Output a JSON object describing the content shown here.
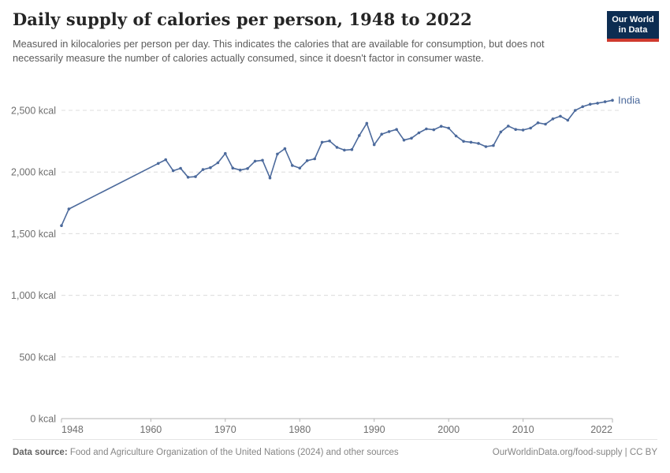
{
  "header": {
    "title": "Daily supply of calories per person, 1948 to 2022",
    "subtitle": "Measured in kilocalories per person per day. This indicates the calories that are available for consumption, but does not necessarily measure the number of calories actually consumed, since it doesn't factor in consumer waste.",
    "logo": {
      "line1": "Our World",
      "line2": "in Data",
      "bg_color": "#0d2d52",
      "stripe_color": "#cf3a2e",
      "text_color": "#ffffff"
    }
  },
  "chart_data": {
    "type": "line",
    "title": "Daily supply of calories per person, 1948 to 2022",
    "xlabel": "",
    "ylabel": "",
    "xlim": [
      1948,
      2022
    ],
    "ylim": [
      0,
      2500
    ],
    "grid": "horizontal-dashed",
    "legend_position": "end-of-line-label",
    "y_ticks": [
      {
        "value": 0,
        "label": "0 kcal"
      },
      {
        "value": 500,
        "label": "500 kcal"
      },
      {
        "value": 1000,
        "label": "1,000 kcal"
      },
      {
        "value": 1500,
        "label": "1,500 kcal"
      },
      {
        "value": 2000,
        "label": "2,000 kcal"
      },
      {
        "value": 2500,
        "label": "2,500 kcal"
      }
    ],
    "x_ticks": [
      {
        "value": 1948,
        "label": "1948"
      },
      {
        "value": 1960,
        "label": "1960"
      },
      {
        "value": 1970,
        "label": "1970"
      },
      {
        "value": 1980,
        "label": "1980"
      },
      {
        "value": 1990,
        "label": "1990"
      },
      {
        "value": 2000,
        "label": "2000"
      },
      {
        "value": 2010,
        "label": "2010"
      },
      {
        "value": 2022,
        "label": "2022"
      }
    ],
    "series": [
      {
        "name": "India",
        "color": "#4c6a9c",
        "unit": "kcal",
        "points": [
          [
            1948,
            1565
          ],
          [
            1949,
            1700
          ],
          [
            1961,
            2070
          ],
          [
            1962,
            2100
          ],
          [
            1963,
            2010
          ],
          [
            1964,
            2030
          ],
          [
            1965,
            1958
          ],
          [
            1966,
            1962
          ],
          [
            1967,
            2020
          ],
          [
            1968,
            2035
          ],
          [
            1969,
            2075
          ],
          [
            1970,
            2150
          ],
          [
            1971,
            2032
          ],
          [
            1972,
            2016
          ],
          [
            1973,
            2028
          ],
          [
            1974,
            2088
          ],
          [
            1975,
            2095
          ],
          [
            1976,
            1952
          ],
          [
            1977,
            2146
          ],
          [
            1978,
            2189
          ],
          [
            1979,
            2053
          ],
          [
            1980,
            2032
          ],
          [
            1981,
            2092
          ],
          [
            1982,
            2107
          ],
          [
            1983,
            2242
          ],
          [
            1984,
            2252
          ],
          [
            1985,
            2200
          ],
          [
            1986,
            2178
          ],
          [
            1987,
            2182
          ],
          [
            1988,
            2296
          ],
          [
            1989,
            2395
          ],
          [
            1990,
            2221
          ],
          [
            1991,
            2307
          ],
          [
            1992,
            2328
          ],
          [
            1993,
            2345
          ],
          [
            1994,
            2259
          ],
          [
            1995,
            2274
          ],
          [
            1996,
            2318
          ],
          [
            1997,
            2350
          ],
          [
            1998,
            2343
          ],
          [
            1999,
            2371
          ],
          [
            2000,
            2356
          ],
          [
            2001,
            2292
          ],
          [
            2002,
            2249
          ],
          [
            2003,
            2242
          ],
          [
            2004,
            2232
          ],
          [
            2005,
            2206
          ],
          [
            2006,
            2215
          ],
          [
            2007,
            2325
          ],
          [
            2008,
            2373
          ],
          [
            2009,
            2345
          ],
          [
            2010,
            2341
          ],
          [
            2011,
            2356
          ],
          [
            2012,
            2399
          ],
          [
            2013,
            2388
          ],
          [
            2014,
            2431
          ],
          [
            2015,
            2453
          ],
          [
            2016,
            2420
          ],
          [
            2017,
            2500
          ],
          [
            2018,
            2530
          ],
          [
            2019,
            2550
          ],
          [
            2020,
            2558
          ],
          [
            2021,
            2570
          ],
          [
            2022,
            2582
          ]
        ]
      }
    ]
  },
  "footer": {
    "source_label": "Data source:",
    "source_text": " Food and Agriculture Organization of the United Nations (2024) and other sources",
    "link_text": "OurWorldinData.org/food-supply | CC BY"
  }
}
